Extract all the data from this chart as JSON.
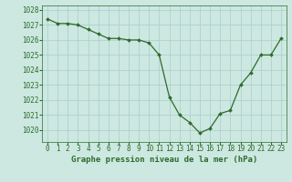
{
  "x": [
    0,
    1,
    2,
    3,
    4,
    5,
    6,
    7,
    8,
    9,
    10,
    11,
    12,
    13,
    14,
    15,
    16,
    17,
    18,
    19,
    20,
    21,
    22,
    23
  ],
  "y": [
    1027.4,
    1027.1,
    1027.1,
    1027.0,
    1026.7,
    1026.4,
    1026.1,
    1026.1,
    1026.0,
    1026.0,
    1025.8,
    1025.0,
    1022.2,
    1021.0,
    1020.5,
    1019.8,
    1020.1,
    1021.1,
    1021.3,
    1023.0,
    1023.8,
    1025.0,
    1025.0,
    1026.1
  ],
  "line_color": "#2d6a2d",
  "marker_color": "#2d6a2d",
  "bg_color": "#cce8e0",
  "grid_color": "#aacccc",
  "xlabel": "Graphe pression niveau de la mer (hPa)",
  "ylim_min": 1019.2,
  "ylim_max": 1028.3,
  "xlim_min": -0.5,
  "xlim_max": 23.5,
  "yticks": [
    1020,
    1021,
    1022,
    1023,
    1024,
    1025,
    1026,
    1027,
    1028
  ],
  "xticks": [
    0,
    1,
    2,
    3,
    4,
    5,
    6,
    7,
    8,
    9,
    10,
    11,
    12,
    13,
    14,
    15,
    16,
    17,
    18,
    19,
    20,
    21,
    22,
    23
  ],
  "xlabel_fontsize": 6.5,
  "tick_fontsize": 5.5
}
